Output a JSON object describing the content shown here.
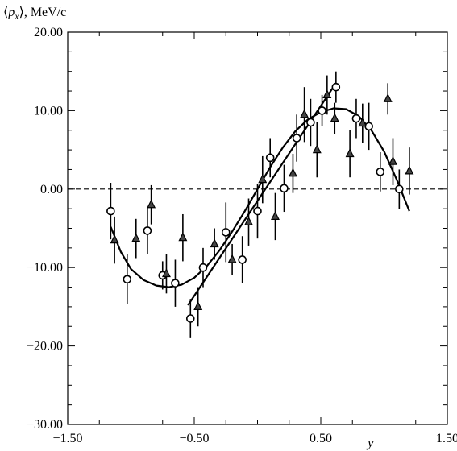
{
  "chart_data": {
    "type": "scatter",
    "title": "",
    "ylabel": {
      "prefix": "⟨",
      "symbol": "p",
      "subscript": "x",
      "suffix": "⟩, MeV/c"
    },
    "xlabel": "y",
    "xlim": [
      -1.5,
      1.5
    ],
    "ylim": [
      -30,
      20
    ],
    "xticks": [
      -1.5,
      -0.5,
      0.5,
      1.5
    ],
    "xtick_labels": [
      "−1.50",
      "−0.50",
      "0.50",
      "1.50"
    ],
    "yticks": [
      20,
      10,
      0,
      -10,
      -20,
      -30
    ],
    "ytick_labels": [
      "20.00",
      "10.00",
      "0.00",
      "−10.00",
      "−20.00",
      "−30.00"
    ],
    "reference_line": {
      "y": 0,
      "style": "dashed"
    },
    "series": [
      {
        "marker": "circle",
        "points": [
          {
            "x": -1.16,
            "y": -2.8,
            "err": 3.6
          },
          {
            "x": -1.03,
            "y": -11.5,
            "err": 3.2
          },
          {
            "x": -0.87,
            "y": -5.3,
            "err": 3.0
          },
          {
            "x": -0.75,
            "y": -11.0,
            "err": 1.8
          },
          {
            "x": -0.65,
            "y": -12.0,
            "err": 3.0
          },
          {
            "x": -0.53,
            "y": -16.5,
            "err": 2.5
          },
          {
            "x": -0.43,
            "y": -10.0,
            "err": 2.5
          },
          {
            "x": -0.25,
            "y": -5.5,
            "err": 3.8
          },
          {
            "x": -0.12,
            "y": -9.0,
            "err": 3.0
          },
          {
            "x": 0.0,
            "y": -2.8,
            "err": 3.5
          },
          {
            "x": 0.1,
            "y": 4.0,
            "err": 2.5
          },
          {
            "x": 0.21,
            "y": 0.1,
            "err": 3.0
          },
          {
            "x": 0.31,
            "y": 6.5,
            "err": 3.0
          },
          {
            "x": 0.42,
            "y": 8.5,
            "err": 3.0
          },
          {
            "x": 0.51,
            "y": 10.0,
            "err": 2.0
          },
          {
            "x": 0.62,
            "y": 13.0,
            "err": 2.0
          },
          {
            "x": 0.78,
            "y": 9.0,
            "err": 2.5
          },
          {
            "x": 0.88,
            "y": 8.0,
            "err": 3.0
          },
          {
            "x": 0.97,
            "y": 2.2,
            "err": 2.5
          },
          {
            "x": 1.12,
            "y": 0.0,
            "err": 2.5
          }
        ]
      },
      {
        "marker": "triangle",
        "points": [
          {
            "x": -1.13,
            "y": -6.5,
            "err": 3.0
          },
          {
            "x": -0.96,
            "y": -6.3,
            "err": 2.5
          },
          {
            "x": -0.84,
            "y": -2.0,
            "err": 2.5
          },
          {
            "x": -0.72,
            "y": -10.8,
            "err": 2.5
          },
          {
            "x": -0.59,
            "y": -6.2,
            "err": 3.0
          },
          {
            "x": -0.47,
            "y": -15.0,
            "err": 2.5
          },
          {
            "x": -0.34,
            "y": -7.0,
            "err": 2.0
          },
          {
            "x": -0.2,
            "y": -9.0,
            "err": 2.0
          },
          {
            "x": -0.07,
            "y": -4.2,
            "err": 3.0
          },
          {
            "x": 0.04,
            "y": 1.2,
            "err": 3.0
          },
          {
            "x": 0.14,
            "y": -3.5,
            "err": 3.0
          },
          {
            "x": 0.28,
            "y": 2.0,
            "err": 2.5
          },
          {
            "x": 0.37,
            "y": 9.5,
            "err": 3.5
          },
          {
            "x": 0.47,
            "y": 5.0,
            "err": 3.5
          },
          {
            "x": 0.55,
            "y": 12.0,
            "err": 2.5
          },
          {
            "x": 0.61,
            "y": 9.0,
            "err": 2.0
          },
          {
            "x": 0.73,
            "y": 4.5,
            "err": 3.0
          },
          {
            "x": 0.83,
            "y": 8.4,
            "err": 2.5
          },
          {
            "x": 1.03,
            "y": 11.5,
            "err": 2.0
          },
          {
            "x": 1.07,
            "y": 3.5,
            "err": 3.0
          },
          {
            "x": 1.2,
            "y": 2.3,
            "err": 3.0
          }
        ]
      }
    ],
    "curves": [
      {
        "style": "solid",
        "points": [
          [
            -1.16,
            -4.8
          ],
          [
            -1.08,
            -8.0
          ],
          [
            -1.0,
            -10.2
          ],
          [
            -0.9,
            -11.6
          ],
          [
            -0.8,
            -12.3
          ],
          [
            -0.7,
            -12.5
          ],
          [
            -0.6,
            -12.2
          ],
          [
            -0.5,
            -11.3
          ],
          [
            -0.4,
            -9.8
          ],
          [
            -0.3,
            -7.8
          ],
          [
            -0.2,
            -5.4
          ],
          [
            -0.1,
            -2.8
          ],
          [
            0.0,
            0.0
          ],
          [
            0.1,
            2.8
          ],
          [
            0.2,
            5.3
          ],
          [
            0.3,
            7.4
          ],
          [
            0.4,
            8.9
          ],
          [
            0.5,
            9.8
          ],
          [
            0.6,
            10.3
          ],
          [
            0.7,
            10.2
          ],
          [
            0.8,
            9.3
          ],
          [
            0.9,
            7.5
          ],
          [
            1.0,
            4.8
          ],
          [
            1.1,
            1.2
          ],
          [
            1.2,
            -2.8
          ]
        ]
      },
      {
        "style": "solid",
        "points": [
          [
            -0.55,
            -14.8
          ],
          [
            0.62,
            13.5
          ]
        ]
      }
    ]
  }
}
